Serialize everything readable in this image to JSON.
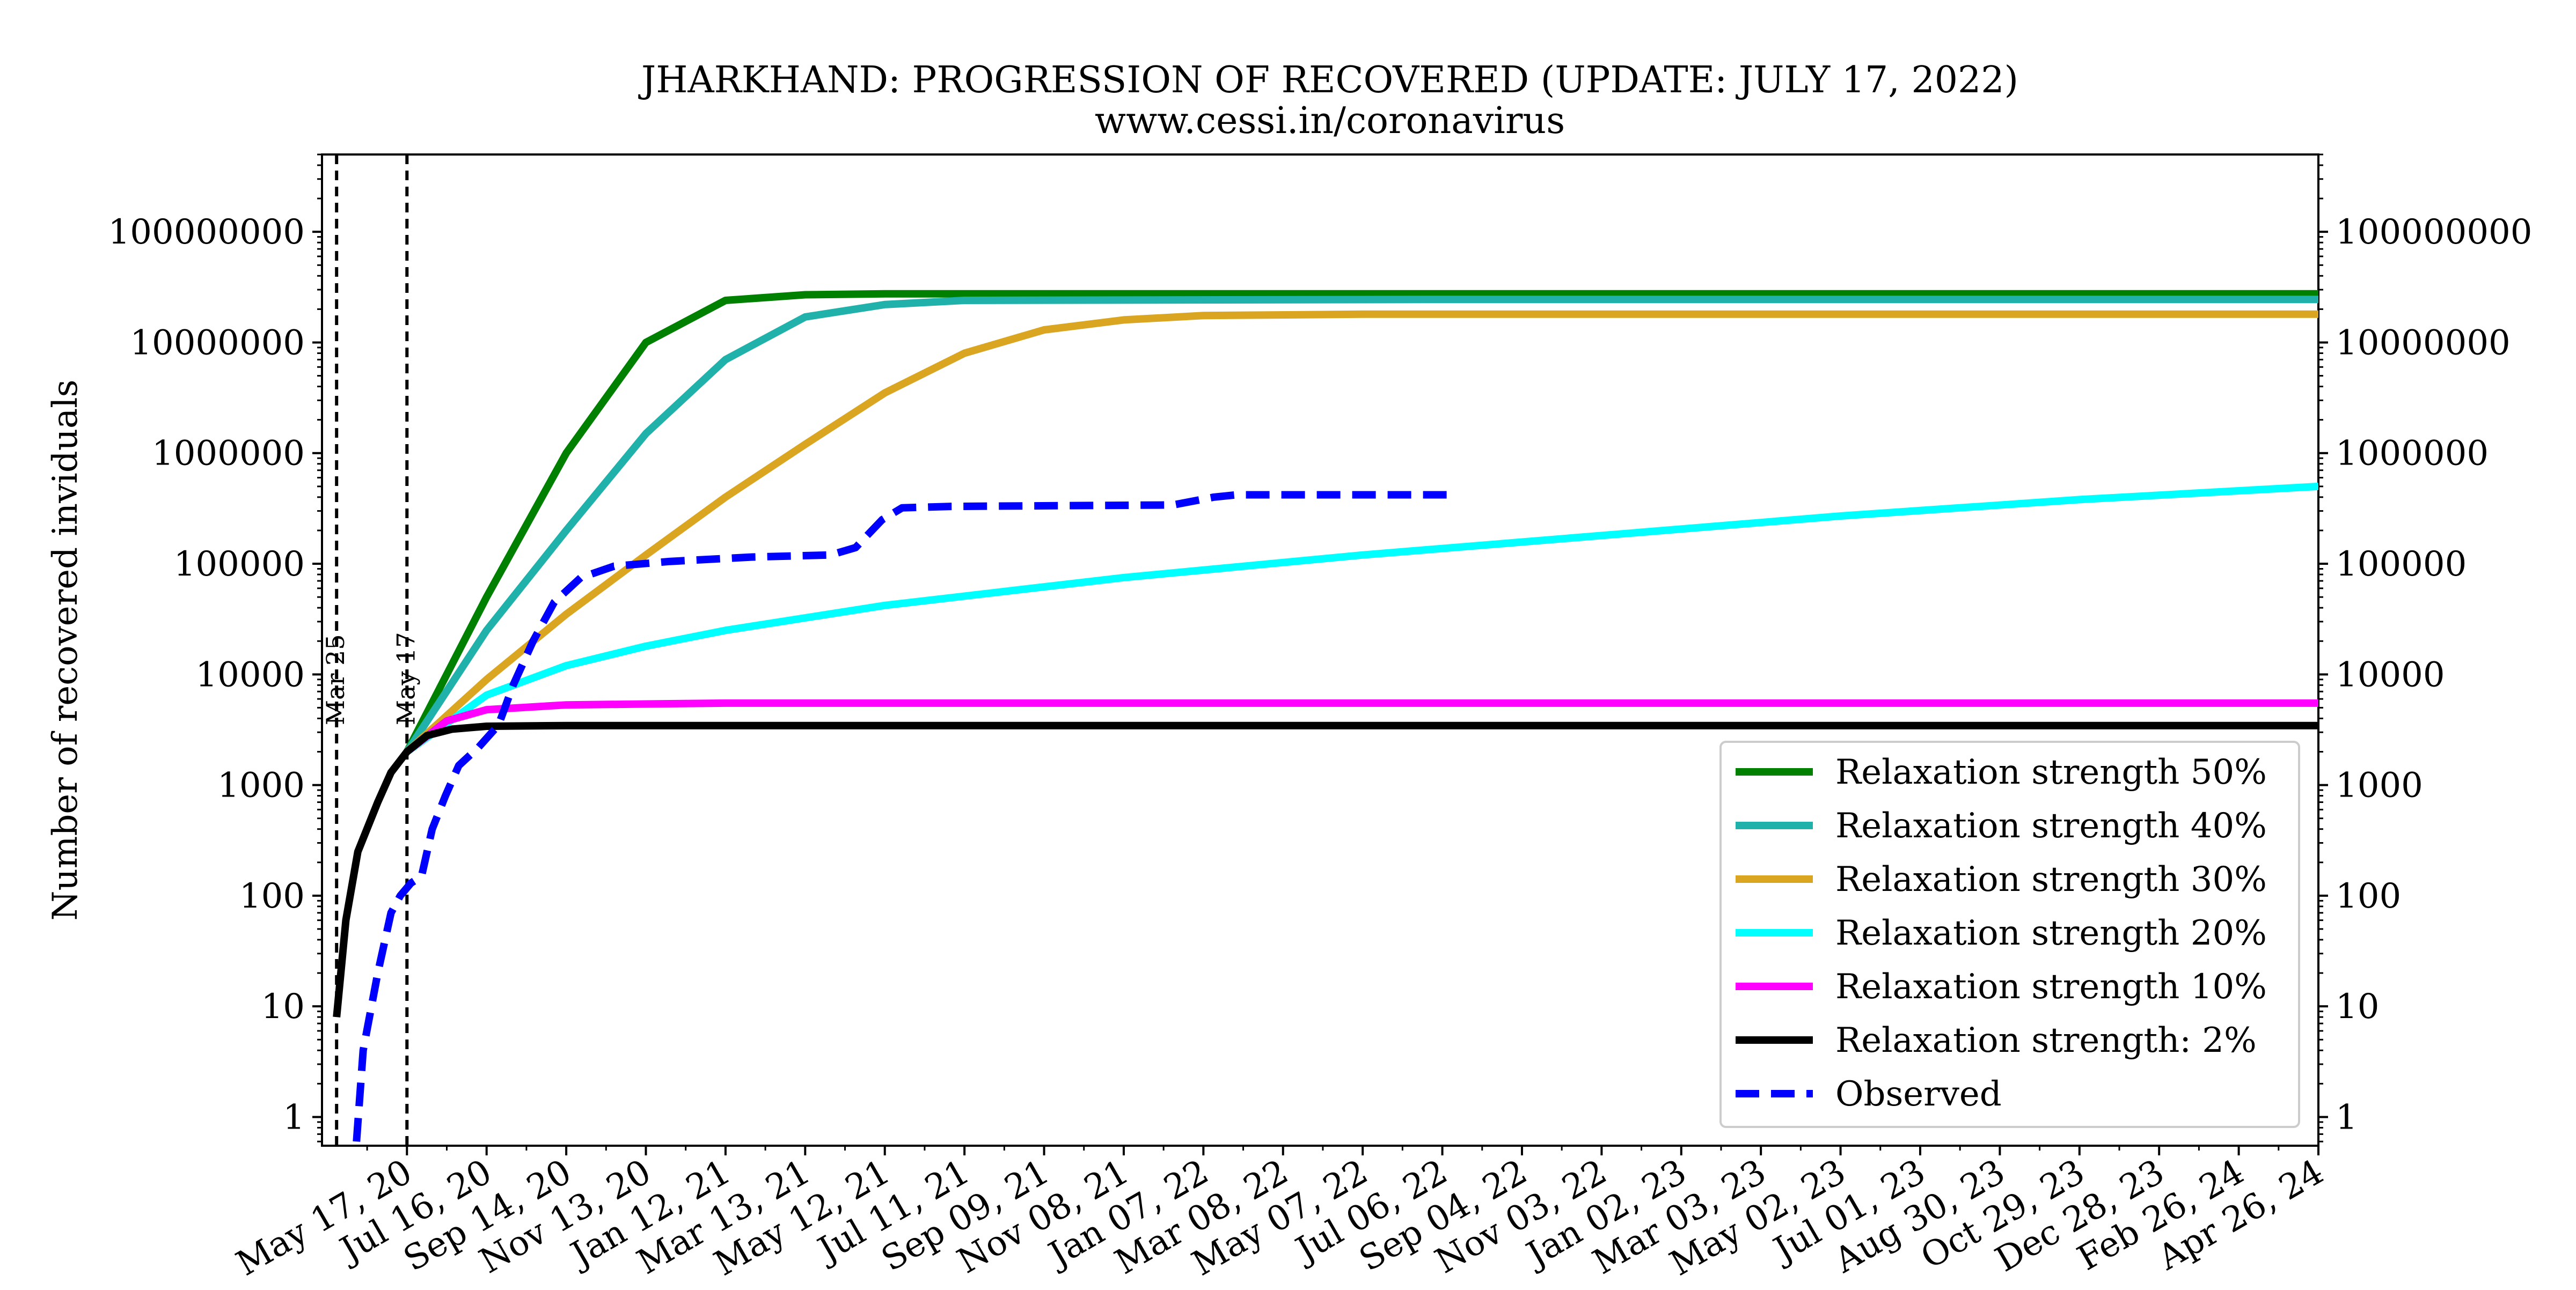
{
  "chart_data": {
    "type": "line",
    "title": "JHARKHAND: PROGRESSION OF RECOVERED (UPDATE: JULY 17, 2022)",
    "subtitle": "www.cessi.in/coronavirus",
    "xlabel": "",
    "ylabel": "Number of recovered inviduals",
    "yscale": "log",
    "ylim": [
      0.55,
      500000000
    ],
    "xlim": [
      "2020-03-14",
      "2024-04-26"
    ],
    "y_ticks": [
      "1",
      "10",
      "100",
      "1000",
      "10000",
      "100000",
      "1000000",
      "10000000",
      "100000000"
    ],
    "y_ticks_right": [
      "1",
      "10",
      "100",
      "1000",
      "10000",
      "100000",
      "1000000",
      "10000000",
      "100000000"
    ],
    "x_ticks": [
      "May 17, 20",
      "Jul 16, 20",
      "Sep 14, 20",
      "Nov 13, 20",
      "Jan 12, 21",
      "Mar 13, 21",
      "May 12, 21",
      "Jul 11, 21",
      "Sep 09, 21",
      "Nov 08, 21",
      "Jan 07, 22",
      "Mar 08, 22",
      "May 07, 22",
      "Jul 06, 22",
      "Sep 04, 22",
      "Nov 03, 22",
      "Jan 02, 23",
      "Mar 03, 23",
      "May 02, 23",
      "Jul 01, 23",
      "Aug 30, 23",
      "Oct 29, 23",
      "Dec 28, 23",
      "Feb 26, 24",
      "Apr 26, 24"
    ],
    "vlines": [
      {
        "date": "2020-03-25",
        "label": "Mar 25"
      },
      {
        "date": "2020-05-17",
        "label": "May 17"
      }
    ],
    "legend_position": "lower-right",
    "grid": false,
    "series": [
      {
        "name": "Relaxation strength 50%",
        "color": "#008000",
        "style": "solid",
        "points": [
          [
            "2020-05-17",
            2000
          ],
          [
            "2020-07-16",
            50000
          ],
          [
            "2020-09-14",
            1000000
          ],
          [
            "2020-11-13",
            10000000
          ],
          [
            "2021-01-12",
            24000000
          ],
          [
            "2021-03-13",
            27000000
          ],
          [
            "2021-05-12",
            27500000
          ],
          [
            "2022-07-06",
            27500000
          ],
          [
            "2024-04-26",
            27500000
          ]
        ]
      },
      {
        "name": "Relaxation strength 40%",
        "color": "#20b2aa",
        "style": "solid",
        "points": [
          [
            "2020-05-17",
            2000
          ],
          [
            "2020-07-16",
            25000
          ],
          [
            "2020-09-14",
            200000
          ],
          [
            "2020-11-13",
            1500000
          ],
          [
            "2021-01-12",
            7000000
          ],
          [
            "2021-03-13",
            17000000
          ],
          [
            "2021-05-12",
            22000000
          ],
          [
            "2021-07-11",
            24000000
          ],
          [
            "2022-07-06",
            24500000
          ],
          [
            "2024-04-26",
            24500000
          ]
        ]
      },
      {
        "name": "Relaxation strength 30%",
        "color": "#daa520",
        "style": "solid",
        "points": [
          [
            "2020-05-17",
            2000
          ],
          [
            "2020-07-16",
            9000
          ],
          [
            "2020-09-14",
            35000
          ],
          [
            "2020-11-13",
            120000
          ],
          [
            "2021-01-12",
            400000
          ],
          [
            "2021-03-13",
            1200000
          ],
          [
            "2021-05-12",
            3500000
          ],
          [
            "2021-07-11",
            8000000
          ],
          [
            "2021-09-09",
            13000000
          ],
          [
            "2021-11-08",
            16000000
          ],
          [
            "2022-01-07",
            17500000
          ],
          [
            "2022-05-07",
            18000000
          ],
          [
            "2024-04-26",
            18000000
          ]
        ]
      },
      {
        "name": "Relaxation strength 20%",
        "color": "#00ffff",
        "style": "solid",
        "points": [
          [
            "2020-05-17",
            2000
          ],
          [
            "2020-07-16",
            6500
          ],
          [
            "2020-09-14",
            12000
          ],
          [
            "2020-11-13",
            18000
          ],
          [
            "2021-01-12",
            25000
          ],
          [
            "2021-05-12",
            42000
          ],
          [
            "2021-11-08",
            75000
          ],
          [
            "2022-05-07",
            120000
          ],
          [
            "2022-11-03",
            180000
          ],
          [
            "2023-05-02",
            270000
          ],
          [
            "2023-10-29",
            380000
          ],
          [
            "2024-04-26",
            500000
          ]
        ]
      },
      {
        "name": "Relaxation strength 10%",
        "color": "#ff00ff",
        "style": "solid",
        "points": [
          [
            "2020-05-17",
            2000
          ],
          [
            "2020-06-16",
            3800
          ],
          [
            "2020-07-16",
            4800
          ],
          [
            "2020-09-14",
            5300
          ],
          [
            "2020-11-13",
            5400
          ],
          [
            "2021-01-12",
            5500
          ],
          [
            "2024-04-26",
            5500
          ]
        ]
      },
      {
        "name": "Relaxation strength: 2%",
        "color": "#000000",
        "style": "solid",
        "points": [
          [
            "2020-03-25",
            8
          ],
          [
            "2020-04-01",
            60
          ],
          [
            "2020-04-10",
            250
          ],
          [
            "2020-04-25",
            700
          ],
          [
            "2020-05-05",
            1300
          ],
          [
            "2020-05-17",
            2000
          ],
          [
            "2020-06-01",
            2800
          ],
          [
            "2020-06-20",
            3200
          ],
          [
            "2020-07-16",
            3400
          ],
          [
            "2020-09-14",
            3450
          ],
          [
            "2024-04-26",
            3450
          ]
        ]
      },
      {
        "name": "Observed",
        "color": "#0000ff",
        "style": "dashed",
        "points": [
          [
            "2020-04-09",
            0.6
          ],
          [
            "2020-04-14",
            4
          ],
          [
            "2020-04-25",
            20
          ],
          [
            "2020-05-05",
            70
          ],
          [
            "2020-05-12",
            100
          ],
          [
            "2020-05-20",
            130
          ],
          [
            "2020-05-28",
            150
          ],
          [
            "2020-06-05",
            400
          ],
          [
            "2020-06-15",
            800
          ],
          [
            "2020-06-25",
            1500
          ],
          [
            "2020-07-10",
            2200
          ],
          [
            "2020-07-25",
            3500
          ],
          [
            "2020-08-05",
            8000
          ],
          [
            "2020-08-20",
            20000
          ],
          [
            "2020-09-05",
            45000
          ],
          [
            "2020-09-25",
            75000
          ],
          [
            "2020-10-20",
            95000
          ],
          [
            "2020-12-01",
            105000
          ],
          [
            "2021-02-01",
            115000
          ],
          [
            "2021-04-01",
            120000
          ],
          [
            "2021-04-20",
            140000
          ],
          [
            "2021-05-10",
            250000
          ],
          [
            "2021-05-25",
            320000
          ],
          [
            "2021-07-01",
            330000
          ],
          [
            "2021-12-15",
            340000
          ],
          [
            "2022-01-15",
            400000
          ],
          [
            "2022-02-01",
            420000
          ],
          [
            "2022-07-17",
            420000
          ]
        ]
      }
    ]
  }
}
